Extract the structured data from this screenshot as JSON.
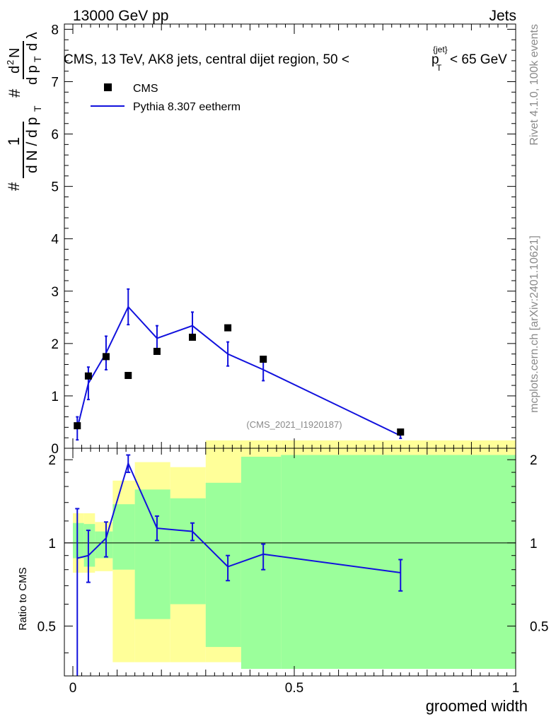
{
  "header": {
    "left": "13000 GeV pp",
    "right": "Jets"
  },
  "side_text": {
    "rivet": "Rivet 4.1.0,  100k events",
    "site": "mcplots.cern.ch [arXiv:2401.10621]"
  },
  "watermark": "(CMS_2021_I1920187)",
  "chart_data": {
    "type": "line",
    "title": "CMS, 13 TeV, AK8 jets, central dijet region, 50 < p_T^{jet} < 65 GeV",
    "title_parts": {
      "prefix": "CMS, 13 TeV, AK8 jets, central dijet region, 50 <",
      "p": "p",
      "sub": "T",
      "sup": "{jet}",
      "suffix": "< 65 GeV"
    },
    "xlabel": "groomed width",
    "ylabel_main": "1/dN/dp_T dN/dp_T dλ",
    "ylabel_parts": {
      "hash": "#",
      "one": "1",
      "dN": "d N / d p",
      "d2N": "d",
      "sq": "2",
      "N": "N",
      "dp": "d p",
      "dl": "d λ",
      "T": "T"
    },
    "ylabel_ratio": "Ratio to CMS",
    "xlim": [
      -0.02,
      1.0
    ],
    "x_ticks": [
      0,
      0.5,
      1
    ],
    "x_tick_labels": [
      "0",
      "0.5",
      "1"
    ],
    "main": {
      "ylim": [
        0,
        8.1
      ],
      "y_ticks": [
        0,
        1,
        2,
        3,
        4,
        5,
        6,
        7,
        8
      ],
      "y_tick_labels": [
        "0",
        "1",
        "2",
        "3",
        "4",
        "5",
        "6",
        "7",
        "8"
      ]
    },
    "ratio": {
      "ylim": [
        0.33,
        2.2
      ],
      "y_ticks": [
        0.5,
        1,
        2
      ],
      "y_tick_labels": [
        "0.5",
        "1",
        "2"
      ]
    },
    "legend": {
      "position": "top-left",
      "entries": [
        {
          "label": "CMS",
          "marker": "square"
        },
        {
          "label": "Pythia 8.307 eetherm",
          "marker": "line"
        }
      ]
    },
    "bin_edges": [
      0.0,
      0.025,
      0.05,
      0.1,
      0.15,
      0.225,
      0.3,
      0.4,
      0.5,
      1.0
    ],
    "series": [
      {
        "name": "CMS",
        "x": [
          0.01,
          0.035,
          0.075,
          0.125,
          0.19,
          0.27,
          0.35,
          0.43,
          0.74
        ],
        "values": [
          0.43,
          1.38,
          1.75,
          1.39,
          1.85,
          2.12,
          2.3,
          1.7,
          0.31
        ]
      },
      {
        "name": "Pythia 8.307 eetherm",
        "x": [
          0.01,
          0.035,
          0.075,
          0.125,
          0.19,
          0.27,
          0.35,
          0.43,
          0.74
        ],
        "values": [
          0.38,
          1.24,
          1.82,
          2.7,
          2.1,
          2.34,
          1.8,
          1.5,
          0.24
        ],
        "errors": [
          0.22,
          0.31,
          0.32,
          0.34,
          0.24,
          0.26,
          0.23,
          0.21,
          0.05
        ]
      }
    ],
    "ratio_series": {
      "name": "Pythia 8.307 eetherm / CMS",
      "x": [
        0.01,
        0.035,
        0.075,
        0.125,
        0.19,
        0.27,
        0.35,
        0.43,
        0.74
      ],
      "values": [
        0.88,
        0.9,
        1.04,
        1.94,
        1.13,
        1.1,
        0.82,
        0.91,
        0.78
      ],
      "err_low": [
        0.6,
        0.18,
        0.15,
        0.14,
        0.11,
        0.08,
        0.09,
        0.11,
        0.11
      ],
      "err_high": [
        0.45,
        0.21,
        0.15,
        0.14,
        0.12,
        0.08,
        0.08,
        0.08,
        0.09
      ]
    },
    "uncertainty_bands": {
      "bins": [
        [
          0.0,
          0.025
        ],
        [
          0.025,
          0.05
        ],
        [
          0.05,
          0.09
        ],
        [
          0.09,
          0.14
        ],
        [
          0.14,
          0.22
        ],
        [
          0.22,
          0.3
        ],
        [
          0.3,
          0.38
        ],
        [
          0.38,
          0.47
        ],
        [
          0.47,
          1.0
        ]
      ],
      "stat": [
        [
          0.88,
          1.18
        ],
        [
          0.82,
          1.17
        ],
        [
          0.88,
          1.1
        ],
        [
          0.8,
          1.38
        ],
        [
          0.53,
          1.56
        ],
        [
          0.6,
          1.45
        ],
        [
          0.42,
          1.65
        ],
        [
          0.35,
          2.05
        ],
        [
          0.35,
          2.08
        ]
      ],
      "total": [
        [
          0.78,
          1.28
        ],
        [
          0.78,
          1.28
        ],
        [
          0.79,
          1.19
        ],
        [
          0.37,
          1.68
        ],
        [
          0.37,
          1.96
        ],
        [
          0.37,
          1.88
        ],
        [
          0.37,
          2.35
        ],
        [
          0.37,
          2.35
        ],
        [
          0.37,
          2.35
        ]
      ],
      "stat_color": "#9bff9b",
      "total_color": "#ffff99"
    },
    "colors": {
      "data": "#000000",
      "mc": "#1111dd"
    }
  }
}
